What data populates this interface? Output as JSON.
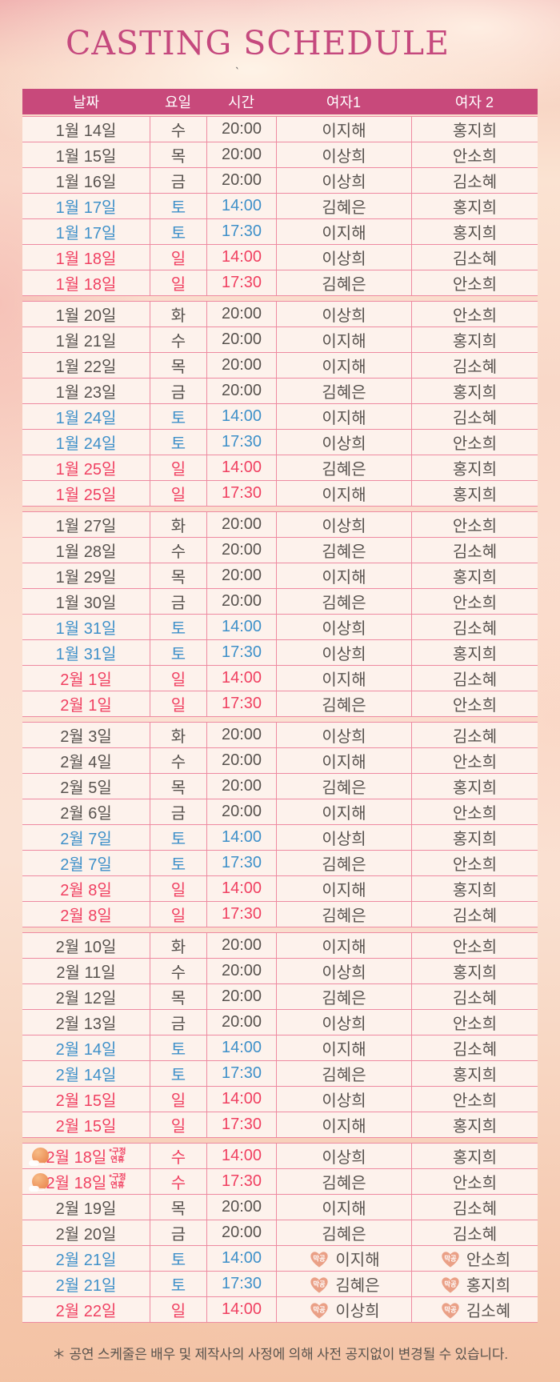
{
  "page": {
    "title": "CASTING SCHEDULE",
    "stray_mark": "`",
    "footnote": "＊ 공연 스케줄은 배우 및 제작사의 사정에 의해 사전 공지없이 변경될 수 있습니다."
  },
  "colors": {
    "header_bg": "#c8497b",
    "title": "#c5497e",
    "border": "#ee8aa1",
    "row_bg": "#fdf2ec",
    "text_gray": "#57524e",
    "saturday_blue": "#3e90c9",
    "sunday_red": "#f04061",
    "badge_fill": "#eaa086"
  },
  "table": {
    "columns": [
      "날짜",
      "요일",
      "시간",
      "여자1",
      "여자 2"
    ],
    "badge_label": "막공",
    "holiday_note_lines": [
      "*구정",
      "연휴"
    ],
    "weeks": [
      [
        {
          "date": "1월 14일",
          "day": "수",
          "time": "20:00",
          "w1": "이지해",
          "w2": "홍지희",
          "type": "weekday"
        },
        {
          "date": "1월 15일",
          "day": "목",
          "time": "20:00",
          "w1": "이상희",
          "w2": "안소희",
          "type": "weekday"
        },
        {
          "date": "1월 16일",
          "day": "금",
          "time": "20:00",
          "w1": "이상희",
          "w2": "김소혜",
          "type": "weekday"
        },
        {
          "date": "1월 17일",
          "day": "토",
          "time": "14:00",
          "w1": "김혜은",
          "w2": "홍지희",
          "type": "sat"
        },
        {
          "date": "1월 17일",
          "day": "토",
          "time": "17:30",
          "w1": "이지해",
          "w2": "홍지희",
          "type": "sat"
        },
        {
          "date": "1월 18일",
          "day": "일",
          "time": "14:00",
          "w1": "이상희",
          "w2": "김소혜",
          "type": "sun"
        },
        {
          "date": "1월 18일",
          "day": "일",
          "time": "17:30",
          "w1": "김혜은",
          "w2": "안소희",
          "type": "sun"
        }
      ],
      [
        {
          "date": "1월 20일",
          "day": "화",
          "time": "20:00",
          "w1": "이상희",
          "w2": "안소희",
          "type": "weekday"
        },
        {
          "date": "1월 21일",
          "day": "수",
          "time": "20:00",
          "w1": "이지해",
          "w2": "홍지희",
          "type": "weekday"
        },
        {
          "date": "1월 22일",
          "day": "목",
          "time": "20:00",
          "w1": "이지해",
          "w2": "김소혜",
          "type": "weekday"
        },
        {
          "date": "1월 23일",
          "day": "금",
          "time": "20:00",
          "w1": "김혜은",
          "w2": "홍지희",
          "type": "weekday"
        },
        {
          "date": "1월 24일",
          "day": "토",
          "time": "14:00",
          "w1": "이지해",
          "w2": "김소혜",
          "type": "sat"
        },
        {
          "date": "1월 24일",
          "day": "토",
          "time": "17:30",
          "w1": "이상희",
          "w2": "안소희",
          "type": "sat"
        },
        {
          "date": "1월 25일",
          "day": "일",
          "time": "14:00",
          "w1": "김혜은",
          "w2": "홍지희",
          "type": "sun"
        },
        {
          "date": "1월 25일",
          "day": "일",
          "time": "17:30",
          "w1": "이지해",
          "w2": "홍지희",
          "type": "sun"
        }
      ],
      [
        {
          "date": "1월 27일",
          "day": "화",
          "time": "20:00",
          "w1": "이상희",
          "w2": "안소희",
          "type": "weekday"
        },
        {
          "date": "1월 28일",
          "day": "수",
          "time": "20:00",
          "w1": "김혜은",
          "w2": "김소혜",
          "type": "weekday"
        },
        {
          "date": "1월 29일",
          "day": "목",
          "time": "20:00",
          "w1": "이지해",
          "w2": "홍지희",
          "type": "weekday"
        },
        {
          "date": "1월 30일",
          "day": "금",
          "time": "20:00",
          "w1": "김혜은",
          "w2": "안소희",
          "type": "weekday"
        },
        {
          "date": "1월 31일",
          "day": "토",
          "time": "14:00",
          "w1": "이상희",
          "w2": "김소혜",
          "type": "sat"
        },
        {
          "date": "1월 31일",
          "day": "토",
          "time": "17:30",
          "w1": "이상희",
          "w2": "홍지희",
          "type": "sat"
        },
        {
          "date": "2월 1일",
          "day": "일",
          "time": "14:00",
          "w1": "이지해",
          "w2": "김소혜",
          "type": "sun"
        },
        {
          "date": "2월 1일",
          "day": "일",
          "time": "17:30",
          "w1": "김혜은",
          "w2": "안소희",
          "type": "sun"
        }
      ],
      [
        {
          "date": "2월 3일",
          "day": "화",
          "time": "20:00",
          "w1": "이상희",
          "w2": "김소혜",
          "type": "weekday"
        },
        {
          "date": "2월 4일",
          "day": "수",
          "time": "20:00",
          "w1": "이지해",
          "w2": "안소희",
          "type": "weekday"
        },
        {
          "date": "2월 5일",
          "day": "목",
          "time": "20:00",
          "w1": "김혜은",
          "w2": "홍지희",
          "type": "weekday"
        },
        {
          "date": "2월 6일",
          "day": "금",
          "time": "20:00",
          "w1": "이지해",
          "w2": "안소희",
          "type": "weekday"
        },
        {
          "date": "2월 7일",
          "day": "토",
          "time": "14:00",
          "w1": "이상희",
          "w2": "홍지희",
          "type": "sat"
        },
        {
          "date": "2월 7일",
          "day": "토",
          "time": "17:30",
          "w1": "김혜은",
          "w2": "안소희",
          "type": "sat"
        },
        {
          "date": "2월 8일",
          "day": "일",
          "time": "14:00",
          "w1": "이지해",
          "w2": "홍지희",
          "type": "sun"
        },
        {
          "date": "2월 8일",
          "day": "일",
          "time": "17:30",
          "w1": "김혜은",
          "w2": "김소혜",
          "type": "sun"
        }
      ],
      [
        {
          "date": "2월 10일",
          "day": "화",
          "time": "20:00",
          "w1": "이지해",
          "w2": "안소희",
          "type": "weekday"
        },
        {
          "date": "2월 11일",
          "day": "수",
          "time": "20:00",
          "w1": "이상희",
          "w2": "홍지희",
          "type": "weekday"
        },
        {
          "date": "2월 12일",
          "day": "목",
          "time": "20:00",
          "w1": "김혜은",
          "w2": "김소혜",
          "type": "weekday"
        },
        {
          "date": "2월 13일",
          "day": "금",
          "time": "20:00",
          "w1": "이상희",
          "w2": "안소희",
          "type": "weekday"
        },
        {
          "date": "2월 14일",
          "day": "토",
          "time": "14:00",
          "w1": "이지해",
          "w2": "김소혜",
          "type": "sat"
        },
        {
          "date": "2월 14일",
          "day": "토",
          "time": "17:30",
          "w1": "김혜은",
          "w2": "홍지희",
          "type": "sat"
        },
        {
          "date": "2월 15일",
          "day": "일",
          "time": "14:00",
          "w1": "이상희",
          "w2": "안소희",
          "type": "sun"
        },
        {
          "date": "2월 15일",
          "day": "일",
          "time": "17:30",
          "w1": "이지해",
          "w2": "홍지희",
          "type": "sun"
        }
      ],
      [
        {
          "date": "2월 18일",
          "day": "수",
          "time": "14:00",
          "w1": "이상희",
          "w2": "홍지희",
          "type": "holiday"
        },
        {
          "date": "2월 18일",
          "day": "수",
          "time": "17:30",
          "w1": "김혜은",
          "w2": "안소희",
          "type": "holiday"
        },
        {
          "date": "2월 19일",
          "day": "목",
          "time": "20:00",
          "w1": "이지해",
          "w2": "김소혜",
          "type": "weekday"
        },
        {
          "date": "2월 20일",
          "day": "금",
          "time": "20:00",
          "w1": "김혜은",
          "w2": "김소혜",
          "type": "weekday"
        },
        {
          "date": "2월 21일",
          "day": "토",
          "time": "14:00",
          "w1": "이지해",
          "w2": "안소희",
          "type": "sat",
          "final": true
        },
        {
          "date": "2월 21일",
          "day": "토",
          "time": "17:30",
          "w1": "김혜은",
          "w2": "홍지희",
          "type": "sat",
          "final": true
        },
        {
          "date": "2월 22일",
          "day": "일",
          "time": "14:00",
          "w1": "이상희",
          "w2": "김소혜",
          "type": "sun",
          "final": true
        }
      ]
    ]
  }
}
